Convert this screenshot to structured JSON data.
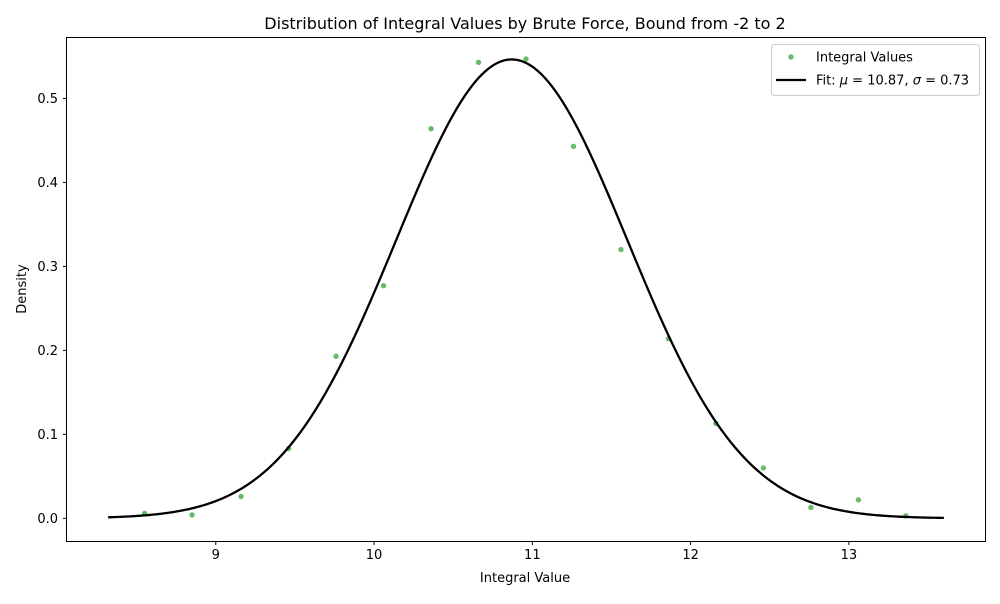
{
  "chart_data": {
    "type": "scatter",
    "title": "Distribution of Integral Values by Brute Force, Bound from -2 to 2",
    "xlabel": "Integral Value",
    "ylabel": "Density",
    "xlim": [
      8.06,
      13.86
    ],
    "ylim": [
      -0.027,
      0.572
    ],
    "xticks": [
      9,
      10,
      11,
      12,
      13
    ],
    "xtick_labels": [
      "9",
      "10",
      "11",
      "12",
      "13"
    ],
    "yticks": [
      0.0,
      0.1,
      0.2,
      0.3,
      0.4,
      0.5
    ],
    "ytick_labels": [
      "0.0",
      "0.1",
      "0.2",
      "0.3",
      "0.4",
      "0.5"
    ],
    "grid": false,
    "legend_position": "top-right",
    "series": [
      {
        "name": "Integral Values",
        "kind": "scatter",
        "color": "#4caf50",
        "x": [
          8.55,
          8.85,
          9.16,
          9.46,
          9.76,
          10.06,
          10.36,
          10.66,
          10.96,
          11.26,
          11.56,
          11.86,
          12.16,
          12.46,
          12.76,
          13.06,
          13.36
        ],
        "y": [
          0.006,
          0.004,
          0.026,
          0.083,
          0.193,
          0.277,
          0.464,
          0.543,
          0.547,
          0.443,
          0.32,
          0.214,
          0.113,
          0.06,
          0.013,
          0.022,
          0.003
        ]
      },
      {
        "name_prefix": "Fit: ",
        "name_mu_symbol": "μ",
        "name_mu_rest": " = 10.87, ",
        "name_sigma_symbol": "σ",
        "name_sigma_rest": " = 0.73",
        "kind": "line",
        "color": "#000000",
        "mu": 10.87,
        "sigma": 0.73,
        "x_range": [
          8.32,
          13.6
        ]
      }
    ]
  }
}
